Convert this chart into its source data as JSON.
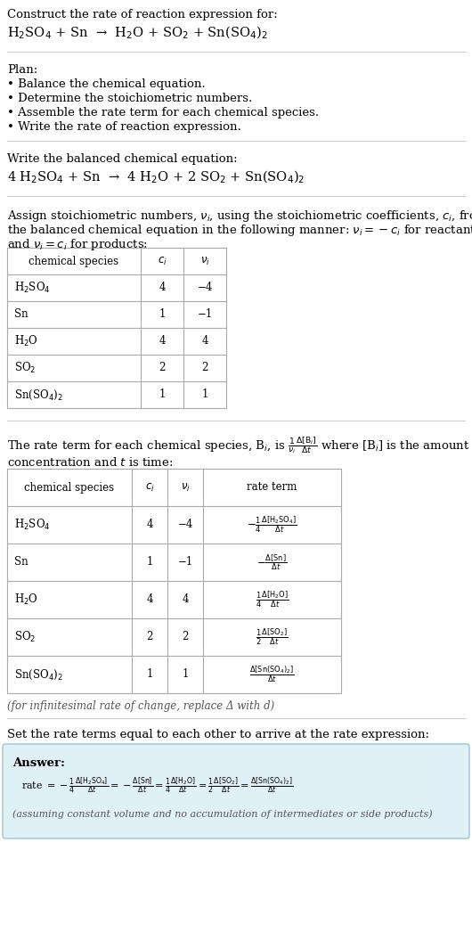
{
  "title_line1": "Construct the rate of reaction expression for:",
  "title_line2": "H$_2$SO$_4$ + Sn  →  H$_2$O + SO$_2$ + Sn(SO$_4$)$_2$",
  "plan_header": "Plan:",
  "plan_items": [
    "• Balance the chemical equation.",
    "• Determine the stoichiometric numbers.",
    "• Assemble the rate term for each chemical species.",
    "• Write the rate of reaction expression."
  ],
  "balanced_header": "Write the balanced chemical equation:",
  "balanced_eq": "4 H$_2$SO$_4$ + Sn  →  4 H$_2$O + 2 SO$_2$ + Sn(SO$_4$)$_2$",
  "stoich_intro_1": "Assign stoichiometric numbers, $\\nu_i$, using the stoichiometric coefficients, $c_i$, from",
  "stoich_intro_2": "the balanced chemical equation in the following manner: $\\nu_i = -c_i$ for reactants",
  "stoich_intro_3": "and $\\nu_i = c_i$ for products:",
  "table1_headers": [
    "chemical species",
    "$c_i$",
    "$\\nu_i$"
  ],
  "table1_rows": [
    [
      "H$_2$SO$_4$",
      "4",
      "−4"
    ],
    [
      "Sn",
      "1",
      "−1"
    ],
    [
      "H$_2$O",
      "4",
      "4"
    ],
    [
      "SO$_2$",
      "2",
      "2"
    ],
    [
      "Sn(SO$_4$)$_2$",
      "1",
      "1"
    ]
  ],
  "rate_intro_1": "The rate term for each chemical species, B$_i$, is $\\frac{1}{\\nu_i}\\frac{\\Delta[\\mathrm{B}_i]}{\\Delta t}$ where [B$_i$] is the amount",
  "rate_intro_2": "concentration and $t$ is time:",
  "table2_headers": [
    "chemical species",
    "$c_i$",
    "$\\nu_i$",
    "rate term"
  ],
  "table2_rows": [
    [
      "H$_2$SO$_4$",
      "4",
      "−4",
      "$-\\frac{1}{4}\\frac{\\Delta[\\mathrm{H_2SO_4}]}{\\Delta t}$"
    ],
    [
      "Sn",
      "1",
      "−1",
      "$-\\frac{\\Delta[\\mathrm{Sn}]}{\\Delta t}$"
    ],
    [
      "H$_2$O",
      "4",
      "4",
      "$\\frac{1}{4}\\frac{\\Delta[\\mathrm{H_2O}]}{\\Delta t}$"
    ],
    [
      "SO$_2$",
      "2",
      "2",
      "$\\frac{1}{2}\\frac{\\Delta[\\mathrm{SO_2}]}{\\Delta t}$"
    ],
    [
      "Sn(SO$_4$)$_2$",
      "1",
      "1",
      "$\\frac{\\Delta[\\mathrm{Sn(SO_4)_2}]}{\\Delta t}$"
    ]
  ],
  "infinitesimal_note": "(for infinitesimal rate of change, replace Δ with d)",
  "set_equal_text": "Set the rate terms equal to each other to arrive at the rate expression:",
  "answer_label": "Answer:",
  "answer_box_color": "#dff0f7",
  "answer_rate_expr": "rate $= -\\frac{1}{4}\\frac{\\Delta[\\mathrm{H_2SO_4}]}{\\Delta t} = -\\frac{\\Delta[\\mathrm{Sn}]}{\\Delta t} = \\frac{1}{4}\\frac{\\Delta[\\mathrm{H_2O}]}{\\Delta t} = \\frac{1}{2}\\frac{\\Delta[\\mathrm{SO_2}]}{\\Delta t} = \\frac{\\Delta[\\mathrm{Sn(SO_4)_2}]}{\\Delta t}$",
  "answer_note": "(assuming constant volume and no accumulation of intermediates or side products)",
  "bg_color": "#ffffff",
  "text_color": "#000000",
  "answer_border_color": "#aaccdd"
}
